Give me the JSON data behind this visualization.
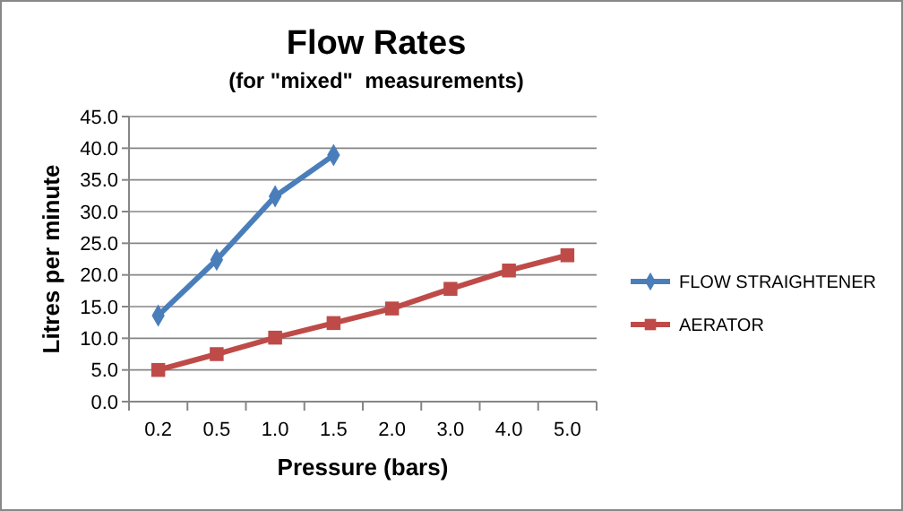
{
  "chart_data": {
    "type": "line",
    "title": "Flow Rates",
    "subtitle": "(for \"mixed\"  measurements)",
    "xlabel": "Pressure (bars)",
    "ylabel": "Litres per minute",
    "categories": [
      "0.2",
      "0.5",
      "1.0",
      "1.5",
      "2.0",
      "3.0",
      "4.0",
      "5.0"
    ],
    "series": [
      {
        "name": "FLOW STRAIGHTENER",
        "color": "#4a7ebb",
        "marker": "diamond",
        "values": [
          13.6,
          22.4,
          32.4,
          38.9,
          null,
          null,
          null,
          null
        ]
      },
      {
        "name": "AERATOR",
        "color": "#be4b48",
        "marker": "square",
        "values": [
          5.0,
          7.5,
          10.1,
          12.4,
          14.7,
          17.8,
          20.7,
          23.1
        ]
      }
    ],
    "ylim": [
      0,
      45
    ],
    "yticks": [
      {
        "value": 0,
        "label": "0.0"
      },
      {
        "value": 5,
        "label": "5.0"
      },
      {
        "value": 10,
        "label": "10.0"
      },
      {
        "value": 15,
        "label": "15.0"
      },
      {
        "value": 20,
        "label": "20.0"
      },
      {
        "value": 25,
        "label": "25.0"
      },
      {
        "value": 30,
        "label": "30.0"
      },
      {
        "value": 35,
        "label": "35.0"
      },
      {
        "value": 40,
        "label": "40.0"
      },
      {
        "value": 45,
        "label": "45.0"
      }
    ],
    "grid": "y",
    "legend": "right"
  }
}
